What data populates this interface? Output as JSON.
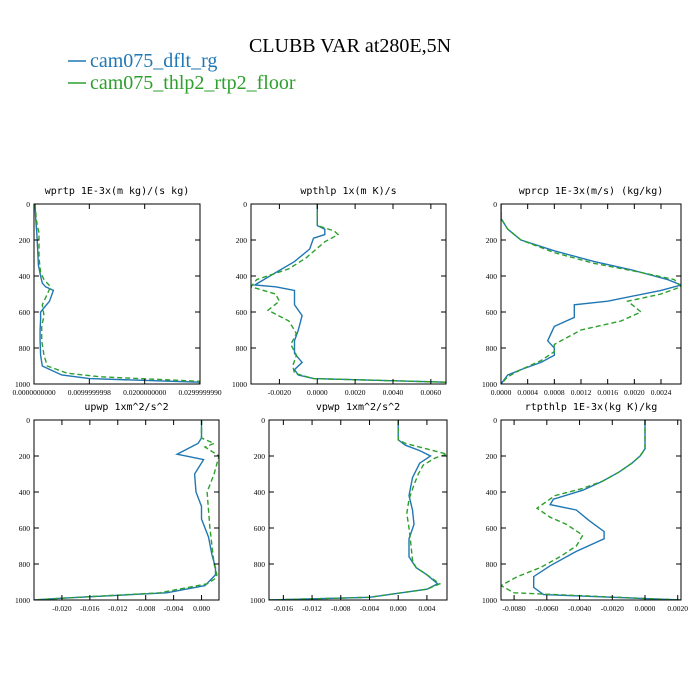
{
  "figure": {
    "title": "CLUBB VAR at280E,5N",
    "legend": [
      {
        "label": "cam075_dflt_rg",
        "color": "#1f77b4",
        "dash": "solid"
      },
      {
        "label": "cam075_thlp2_rtp2_floor",
        "color": "#2ca02c",
        "dash": "dashed"
      }
    ]
  },
  "chart_data": [
    {
      "type": "line",
      "title": "wprtp  1E-3x(m kg)/(s kg)",
      "xlim": [
        0,
        0.03
      ],
      "ylim": [
        1000,
        0
      ],
      "x_ticks": [
        "0.0000000000",
        "0.0099999998",
        "0.0200000000",
        "0.0299999990"
      ],
      "x_tick_values": [
        0,
        0.01,
        0.02,
        0.03
      ],
      "y_ticks": [
        "0",
        "200",
        "400",
        "600",
        "800",
        "1000"
      ],
      "y_tick_values": [
        0,
        200,
        400,
        600,
        800,
        1000
      ],
      "series": [
        {
          "x": [
            0.0002,
            0.0003,
            0.0004,
            0.0005,
            0.0007,
            0.0008,
            0.0012,
            0.0015,
            0.0021,
            0.0035,
            0.0028,
            0.0012,
            0.0012,
            0.0011,
            0.0011,
            0.0012,
            0.0015,
            0.005,
            0.01,
            0.0299,
            0.0299
          ],
          "y": [
            0,
            80,
            120,
            160,
            280,
            340,
            400,
            440,
            460,
            480,
            540,
            600,
            640,
            700,
            760,
            840,
            900,
            950,
            970,
            990,
            1000
          ]
        },
        {
          "x": [
            0.0002,
            0.0004,
            0.0006,
            0.0009,
            0.0009,
            0.0012,
            0.0018,
            0.003,
            0.0024,
            0.0015,
            0.0018,
            0.0014,
            0.0014,
            0.0018,
            0.0024,
            0.006,
            0.012,
            0.0299,
            0.0299
          ],
          "y": [
            0,
            80,
            120,
            160,
            300,
            380,
            420,
            460,
            500,
            560,
            620,
            680,
            760,
            840,
            900,
            940,
            960,
            985,
            1000
          ]
        }
      ]
    },
    {
      "type": "line",
      "title": "wpthlp  1x(m K)/s",
      "xlim": [
        -0.0035,
        0.0068
      ],
      "ylim": [
        1000,
        0
      ],
      "x_ticks": [
        "-0.0020",
        "0.0000",
        "0.0020",
        "0.0040",
        "0.0060"
      ],
      "x_tick_values": [
        -0.002,
        0,
        0.002,
        0.004,
        0.006
      ],
      "y_ticks": [
        "0",
        "200",
        "400",
        "600",
        "800",
        "1000"
      ],
      "y_tick_values": [
        0,
        200,
        400,
        600,
        800,
        1000
      ],
      "series": [
        {
          "x": [
            0,
            0,
            0,
            0.0004,
            0.0004,
            -0.0002,
            -0.0004,
            -0.0012,
            -0.0025,
            -0.0033,
            -0.0022,
            -0.0012,
            -0.0012,
            -0.0008,
            -0.001,
            -0.0012,
            -0.0012,
            -0.0008,
            -0.0012,
            -0.001,
            -0.0002,
            0.0068,
            0.0068
          ],
          "y": [
            0,
            70,
            120,
            140,
            170,
            190,
            250,
            320,
            400,
            450,
            460,
            480,
            560,
            620,
            700,
            760,
            830,
            880,
            920,
            950,
            970,
            990,
            1000
          ]
        },
        {
          "x": [
            0,
            0,
            0,
            0.0009,
            0.0011,
            0.0004,
            -0.0006,
            -0.0015,
            -0.0032,
            -0.0035,
            -0.0022,
            -0.002,
            -0.0026,
            -0.0015,
            -0.0011,
            -0.0014,
            -0.0011,
            -0.0013,
            -0.0012,
            -0.0002,
            0.0068,
            0.0068
          ],
          "y": [
            0,
            70,
            120,
            150,
            170,
            210,
            300,
            360,
            420,
            460,
            500,
            540,
            590,
            650,
            720,
            780,
            840,
            900,
            940,
            970,
            990,
            1000
          ]
        }
      ]
    },
    {
      "type": "line",
      "title": "wprcp  1E-3x(m/s) (kg/kg)",
      "xlim": [
        0,
        0.0027
      ],
      "ylim": [
        1000,
        0
      ],
      "x_ticks": [
        "0.0000",
        "0.0004",
        "0.0008",
        "0.0012",
        "0.0016",
        "0.0020",
        "0.0024"
      ],
      "x_tick_values": [
        0,
        0.0004,
        0.0008,
        0.0012,
        0.0016,
        0.002,
        0.0024
      ],
      "y_ticks": [
        "0",
        "200",
        "400",
        "600",
        "800",
        "1000"
      ],
      "y_tick_values": [
        0,
        200,
        400,
        600,
        800,
        1000
      ],
      "series": [
        {
          "x": [
            0,
            0,
            0.0001,
            0.0003,
            0.0008,
            0.0014,
            0.002,
            0.0025,
            0.0027,
            0.0024,
            0.0016,
            0.0011,
            0.0011,
            0.0008,
            0.0007,
            0.0008,
            0.0008,
            0.0006,
            0.0003,
            0.0001,
            0
          ],
          "y": [
            0,
            80,
            140,
            200,
            260,
            320,
            370,
            420,
            450,
            480,
            540,
            560,
            630,
            680,
            760,
            800,
            840,
            880,
            920,
            950,
            1000
          ]
        },
        {
          "x": [
            0,
            0,
            0.0001,
            0.0003,
            0.0008,
            0.0014,
            0.0021,
            0.0026,
            0.0027,
            0.0024,
            0.0019,
            0.0021,
            0.0018,
            0.0012,
            0.0009,
            0.0008,
            0.0008,
            0.0006,
            0.0003,
            0.0001,
            0
          ],
          "y": [
            0,
            80,
            140,
            200,
            270,
            330,
            380,
            420,
            460,
            500,
            540,
            600,
            650,
            700,
            760,
            780,
            820,
            870,
            920,
            960,
            1000
          ]
        }
      ]
    },
    {
      "type": "line",
      "title": "upwp   1xm^2/s^2",
      "xlim": [
        -0.024,
        0.0025
      ],
      "ylim": [
        1000,
        0
      ],
      "x_ticks": [
        "-0.020",
        "-0.016",
        "-0.012",
        "-0.008",
        "-0.004",
        "0.000"
      ],
      "x_tick_values": [
        -0.02,
        -0.016,
        -0.012,
        -0.008,
        -0.004,
        0
      ],
      "y_ticks": [
        "0",
        "200",
        "400",
        "600",
        "800",
        "1000"
      ],
      "y_tick_values": [
        0,
        200,
        400,
        600,
        800,
        1000
      ],
      "series": [
        {
          "x": [
            0,
            0,
            0,
            -0.0005,
            -0.0035,
            0.0003,
            -0.001,
            -0.0008,
            0,
            0,
            0.001,
            0.0015,
            0.002,
            0.002,
            0.0015,
            0.0005,
            -0.005,
            -0.02,
            -0.024
          ],
          "y": [
            0,
            80,
            100,
            130,
            190,
            220,
            300,
            400,
            480,
            550,
            650,
            750,
            820,
            860,
            880,
            920,
            960,
            990,
            1000
          ]
        },
        {
          "x": [
            0,
            0,
            0,
            0.0018,
            0.0005,
            0.0025,
            0.0018,
            0.0008,
            0.001,
            0.0012,
            0.0015,
            0.0018,
            0.0022,
            0.002,
            0.0008,
            -0.006,
            -0.02,
            -0.024
          ],
          "y": [
            0,
            80,
            100,
            130,
            150,
            200,
            300,
            400,
            500,
            600,
            700,
            800,
            860,
            880,
            910,
            960,
            990,
            1000
          ]
        }
      ]
    },
    {
      "type": "line",
      "title": "vpwp   1xm^2/s^2",
      "xlim": [
        -0.018,
        0.0068
      ],
      "ylim": [
        1000,
        0
      ],
      "x_ticks": [
        "-0.016",
        "-0.012",
        "-0.008",
        "-0.004",
        "0.000",
        "0.004"
      ],
      "x_tick_values": [
        -0.016,
        -0.012,
        -0.008,
        -0.004,
        0,
        0.004
      ],
      "y_ticks": [
        "0",
        "200",
        "400",
        "600",
        "800",
        "1000"
      ],
      "y_tick_values": [
        0,
        200,
        400,
        600,
        800,
        1000
      ],
      "series": [
        {
          "x": [
            0,
            0,
            0,
            0.001,
            0.003,
            0.0045,
            0.003,
            0.002,
            0.0015,
            0.002,
            0.0022,
            0.0015,
            0.0015,
            0.0025,
            0.004,
            0.0055,
            0.004,
            -0.004,
            -0.018
          ],
          "y": [
            0,
            80,
            110,
            140,
            170,
            200,
            240,
            320,
            420,
            500,
            580,
            660,
            760,
            820,
            860,
            910,
            940,
            985,
            1000
          ]
        },
        {
          "x": [
            0,
            0,
            0,
            0.001,
            0.0068,
            0.0052,
            0.0035,
            0.0028,
            0.0022,
            0.0015,
            0.0012,
            0.0015,
            0.0018,
            0.002,
            0.0025,
            0.004,
            0.0058,
            0.004,
            -0.004,
            -0.018
          ],
          "y": [
            0,
            80,
            110,
            130,
            190,
            210,
            250,
            300,
            360,
            440,
            520,
            600,
            700,
            780,
            820,
            860,
            910,
            940,
            985,
            1000
          ]
        }
      ]
    },
    {
      "type": "line",
      "title": "rtpthlp   1E-3x(kg K)/kg",
      "xlim": [
        -0.0088,
        0.0022
      ],
      "ylim": [
        1000,
        0
      ],
      "x_ticks": [
        "-0.0080",
        "-0.0060",
        "-0.0040",
        "-0.0020",
        "0.0000",
        "0.0020"
      ],
      "x_tick_values": [
        -0.008,
        -0.006,
        -0.004,
        -0.002,
        0,
        0.002
      ],
      "y_ticks": [
        "0",
        "200",
        "400",
        "600",
        "800",
        "1000"
      ],
      "y_tick_values": [
        0,
        200,
        400,
        600,
        800,
        1000
      ],
      "series": [
        {
          "x": [
            0,
            0,
            0,
            -0.0003,
            -0.0008,
            -0.0016,
            -0.0026,
            -0.0038,
            -0.0056,
            -0.0058,
            -0.0042,
            -0.0034,
            -0.0025,
            -0.0025,
            -0.0042,
            -0.0058,
            -0.0068,
            -0.0068,
            -0.0062,
            0.0022
          ],
          "y": [
            0,
            80,
            160,
            200,
            240,
            290,
            340,
            390,
            440,
            470,
            500,
            560,
            620,
            660,
            730,
            810,
            870,
            930,
            970,
            1000
          ]
        },
        {
          "x": [
            0,
            0,
            0,
            -0.0003,
            -0.0008,
            -0.0016,
            -0.0026,
            -0.0038,
            -0.0055,
            -0.0066,
            -0.0058,
            -0.0048,
            -0.0038,
            -0.0042,
            -0.0052,
            -0.0064,
            -0.0078,
            -0.0088,
            -0.008,
            0.0022
          ],
          "y": [
            0,
            80,
            160,
            200,
            240,
            290,
            340,
            380,
            420,
            490,
            540,
            580,
            640,
            700,
            760,
            820,
            870,
            920,
            960,
            1000
          ]
        }
      ]
    }
  ]
}
